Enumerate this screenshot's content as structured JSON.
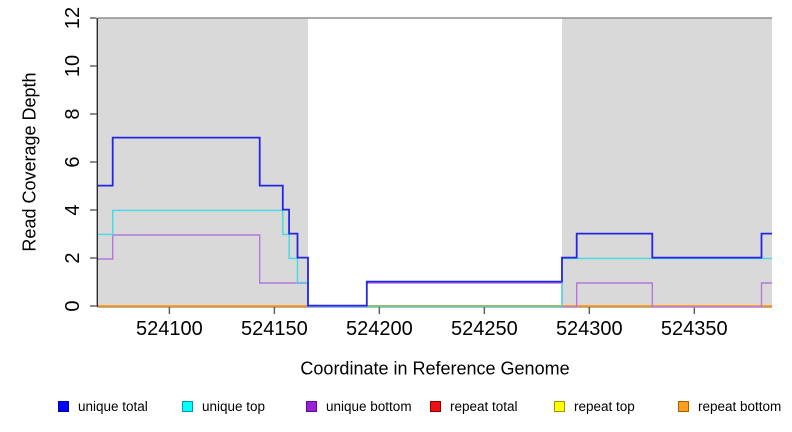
{
  "figure": {
    "background": "#ffffff",
    "plot_background_shaded": "#d9d9d9"
  },
  "chart_data": {
    "type": "line",
    "subtype": "step-coverage",
    "title": "",
    "xlabel": "Coordinate in Reference Genome",
    "ylabel": "Read Coverage Depth",
    "xlim": [
      524066,
      524387
    ],
    "ylim": [
      0,
      12
    ],
    "x_ticks": [
      524100,
      524150,
      524200,
      524250,
      524300,
      524350
    ],
    "y_ticks": [
      0,
      2,
      4,
      6,
      8,
      10,
      12
    ],
    "grid": false,
    "axis_color": "#2b2b2b",
    "tick_color": "#5a5a5a",
    "tick_label_color": "#000000",
    "shaded_regions": {
      "color": "#d9d9d9",
      "top_border_color": "#8f8f8f",
      "ranges": [
        [
          524066,
          524166
        ],
        [
          524287,
          524387
        ]
      ]
    },
    "zero_overlap_line": {
      "color": "#74c476",
      "range": [
        524194,
        524287
      ],
      "note-visible": "green baseline where top-strand lines overlap at depth 0"
    },
    "series": [
      {
        "name": "unique total",
        "color": "#2525e6",
        "steps": [
          [
            524066,
            5
          ],
          [
            524073,
            7
          ],
          [
            524143,
            5
          ],
          [
            524154,
            4
          ],
          [
            524157,
            3
          ],
          [
            524161,
            2
          ],
          [
            524166,
            0
          ],
          [
            524194,
            1
          ],
          [
            524287,
            2
          ],
          [
            524294,
            3
          ],
          [
            524330,
            2
          ],
          [
            524382,
            3
          ]
        ]
      },
      {
        "name": "unique top",
        "color": "#40dbe4",
        "steps": [
          [
            524066,
            3
          ],
          [
            524073,
            4
          ],
          [
            524154,
            3
          ],
          [
            524157,
            2
          ],
          [
            524161,
            1
          ],
          [
            524166,
            0
          ],
          [
            524287,
            2
          ]
        ]
      },
      {
        "name": "unique bottom",
        "color": "#b679da",
        "steps": [
          [
            524066,
            2
          ],
          [
            524073,
            3
          ],
          [
            524143,
            1
          ],
          [
            524166,
            0
          ],
          [
            524194,
            1
          ],
          [
            524287,
            0
          ],
          [
            524294,
            1
          ],
          [
            524330,
            0
          ],
          [
            524382,
            1
          ]
        ]
      },
      {
        "name": "repeat total",
        "color": "#e31a1c",
        "steps": [
          [
            524066,
            0
          ]
        ]
      },
      {
        "name": "repeat top",
        "color": "#ffe200",
        "steps": [
          [
            524066,
            0
          ]
        ]
      },
      {
        "name": "repeat bottom",
        "color": "#ff9d1c",
        "steps": [
          [
            524066,
            0
          ]
        ]
      }
    ],
    "legend": {
      "position": "bottom",
      "items": [
        {
          "label": "unique total",
          "fill": "#0000ff",
          "border": "#00009b"
        },
        {
          "label": "unique top",
          "fill": "#00ffff",
          "border": "#009aa3"
        },
        {
          "label": "unique bottom",
          "fill": "#9a1fd6",
          "border": "#5e0f86"
        },
        {
          "label": "repeat total",
          "fill": "#ee1111",
          "border": "#8f0000"
        },
        {
          "label": "repeat top",
          "fill": "#ffff00",
          "border": "#99990a"
        },
        {
          "label": "repeat bottom",
          "fill": "#ff9d1c",
          "border": "#a55f00"
        }
      ]
    }
  }
}
